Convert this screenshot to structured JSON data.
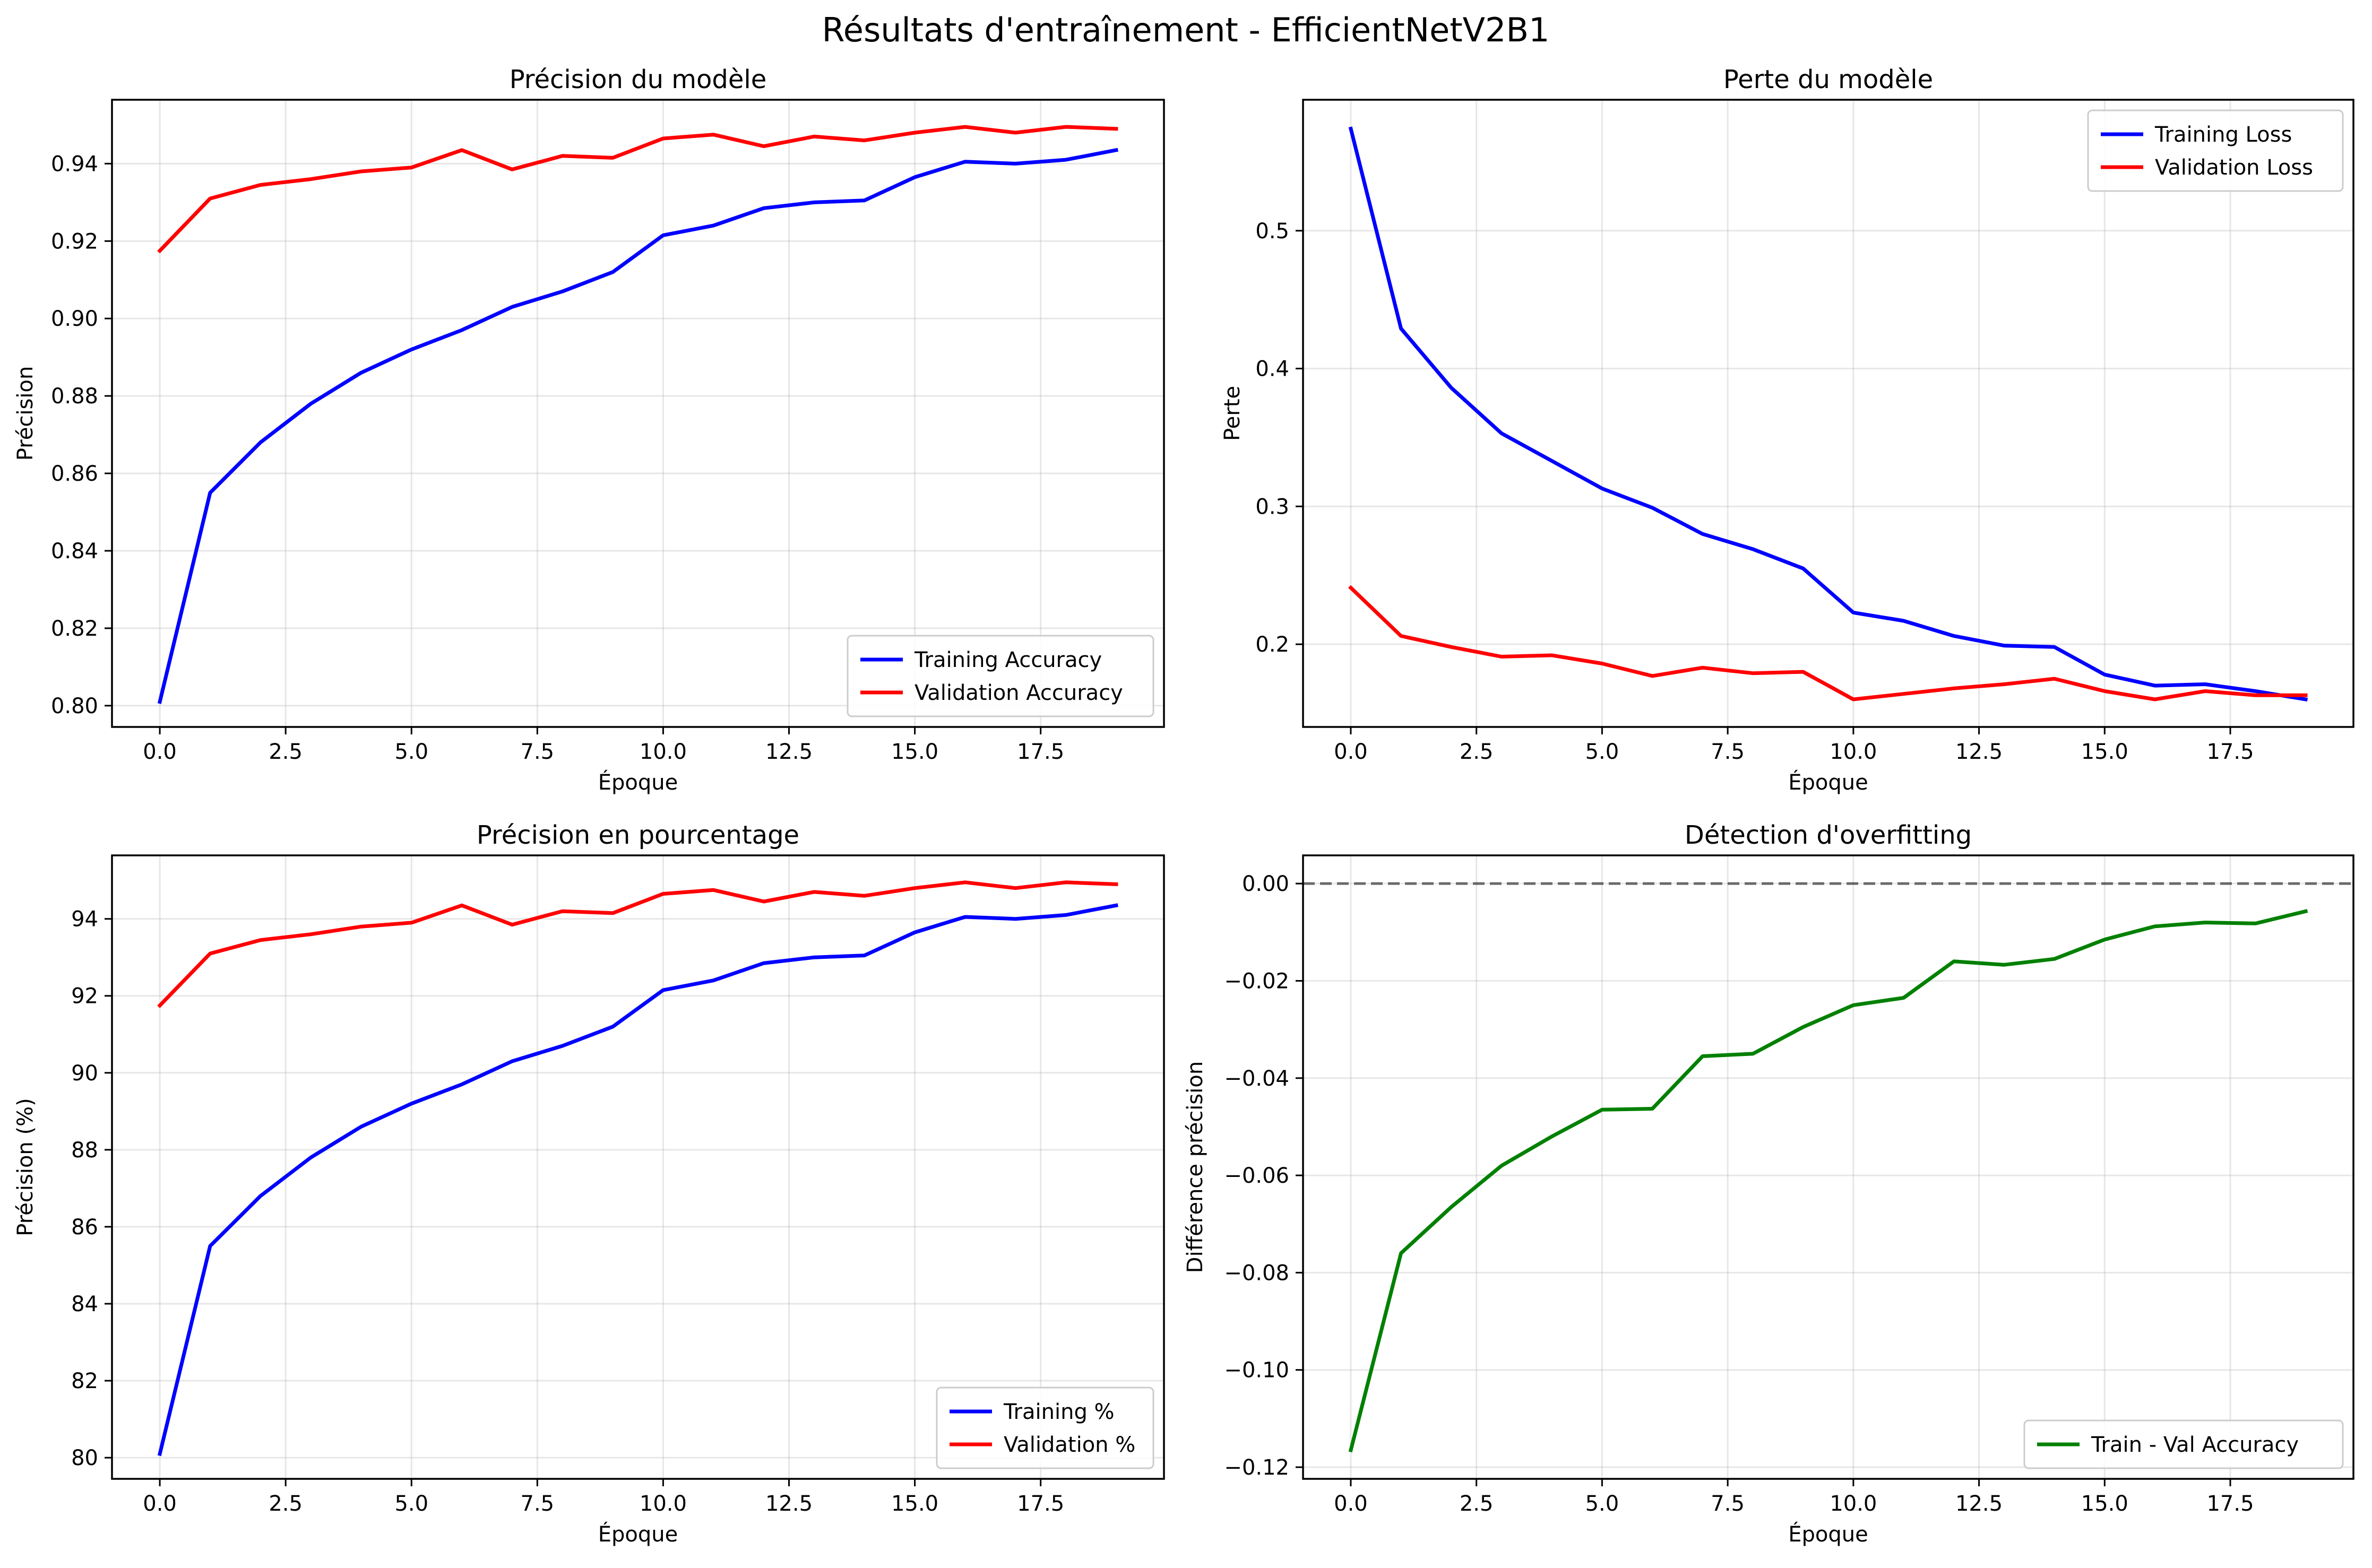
{
  "figure": {
    "title": "Résultats d'entraînement - EfficientNetV2B1"
  },
  "chart_data": [
    {
      "id": "accuracy",
      "type": "line",
      "title": "Précision du modèle",
      "xlabel": "Époque",
      "ylabel": "Précision",
      "xlim": [
        -0.95,
        19.95
      ],
      "ylim": [
        0.7945,
        0.9565
      ],
      "xticks": [
        0.0,
        2.5,
        5.0,
        7.5,
        10.0,
        12.5,
        15.0,
        17.5
      ],
      "xtick_labels": [
        "0.0",
        "2.5",
        "5.0",
        "7.5",
        "10.0",
        "12.5",
        "15.0",
        "17.5"
      ],
      "yticks": [
        0.8,
        0.82,
        0.84,
        0.86,
        0.88,
        0.9,
        0.92,
        0.94
      ],
      "ytick_labels": [
        "0.80",
        "0.82",
        "0.84",
        "0.86",
        "0.88",
        "0.90",
        "0.92",
        "0.94"
      ],
      "grid": true,
      "legend": "lower-right",
      "x": [
        0,
        1,
        2,
        3,
        4,
        5,
        6,
        7,
        8,
        9,
        10,
        11,
        12,
        13,
        14,
        15,
        16,
        17,
        18,
        19
      ],
      "series": [
        {
          "name": "Training Accuracy",
          "color": "#0000ff",
          "values": [
            0.801,
            0.855,
            0.868,
            0.878,
            0.886,
            0.892,
            0.897,
            0.903,
            0.907,
            0.912,
            0.9215,
            0.924,
            0.9285,
            0.93,
            0.9305,
            0.9365,
            0.9405,
            0.94,
            0.941,
            0.9435
          ]
        },
        {
          "name": "Validation Accuracy",
          "color": "#ff0000",
          "values": [
            0.9175,
            0.931,
            0.9345,
            0.936,
            0.938,
            0.939,
            0.9435,
            0.9385,
            0.942,
            0.9415,
            0.9465,
            0.9475,
            0.9445,
            0.947,
            0.946,
            0.948,
            0.9495,
            0.948,
            0.9495,
            0.949
          ]
        }
      ]
    },
    {
      "id": "loss",
      "type": "line",
      "title": "Perte du modèle",
      "xlabel": "Époque",
      "ylabel": "Perte",
      "xlim": [
        -0.95,
        19.95
      ],
      "ylim": [
        0.14,
        0.595
      ],
      "xticks": [
        0.0,
        2.5,
        5.0,
        7.5,
        10.0,
        12.5,
        15.0,
        17.5
      ],
      "xtick_labels": [
        "0.0",
        "2.5",
        "5.0",
        "7.5",
        "10.0",
        "12.5",
        "15.0",
        "17.5"
      ],
      "yticks": [
        0.2,
        0.3,
        0.4,
        0.5
      ],
      "ytick_labels": [
        "0.2",
        "0.3",
        "0.4",
        "0.5"
      ],
      "grid": true,
      "legend": "upper-right",
      "x": [
        0,
        1,
        2,
        3,
        4,
        5,
        6,
        7,
        8,
        9,
        10,
        11,
        12,
        13,
        14,
        15,
        16,
        17,
        18,
        19
      ],
      "series": [
        {
          "name": "Training Loss",
          "color": "#0000ff",
          "values": [
            0.574,
            0.429,
            0.386,
            0.353,
            0.333,
            0.313,
            0.299,
            0.28,
            0.269,
            0.255,
            0.223,
            0.217,
            0.206,
            0.199,
            0.198,
            0.178,
            0.17,
            0.171,
            0.166,
            0.16
          ]
        },
        {
          "name": "Validation Loss",
          "color": "#ff0000",
          "values": [
            0.241,
            0.206,
            0.198,
            0.191,
            0.192,
            0.186,
            0.177,
            0.183,
            0.179,
            0.18,
            0.16,
            0.164,
            0.168,
            0.171,
            0.175,
            0.166,
            0.16,
            0.166,
            0.163,
            0.163
          ]
        }
      ]
    },
    {
      "id": "percent",
      "type": "line",
      "title": "Précision en pourcentage",
      "xlabel": "Époque",
      "ylabel": "Précision (%)",
      "xlim": [
        -0.95,
        19.95
      ],
      "ylim": [
        79.45,
        95.65
      ],
      "xticks": [
        0.0,
        2.5,
        5.0,
        7.5,
        10.0,
        12.5,
        15.0,
        17.5
      ],
      "xtick_labels": [
        "0.0",
        "2.5",
        "5.0",
        "7.5",
        "10.0",
        "12.5",
        "15.0",
        "17.5"
      ],
      "yticks": [
        80,
        82,
        84,
        86,
        88,
        90,
        92,
        94
      ],
      "ytick_labels": [
        "80",
        "82",
        "84",
        "86",
        "88",
        "90",
        "92",
        "94"
      ],
      "grid": true,
      "legend": "lower-right",
      "x": [
        0,
        1,
        2,
        3,
        4,
        5,
        6,
        7,
        8,
        9,
        10,
        11,
        12,
        13,
        14,
        15,
        16,
        17,
        18,
        19
      ],
      "series": [
        {
          "name": "Training %",
          "color": "#0000ff",
          "values": [
            80.1,
            85.5,
            86.8,
            87.8,
            88.6,
            89.2,
            89.7,
            90.3,
            90.7,
            91.2,
            92.15,
            92.4,
            92.85,
            93.0,
            93.05,
            93.65,
            94.05,
            94.0,
            94.1,
            94.35
          ]
        },
        {
          "name": "Validation %",
          "color": "#ff0000",
          "values": [
            91.75,
            93.1,
            93.45,
            93.6,
            93.8,
            93.9,
            94.35,
            93.85,
            94.2,
            94.15,
            94.65,
            94.75,
            94.45,
            94.7,
            94.6,
            94.8,
            94.95,
            94.8,
            94.95,
            94.9
          ]
        }
      ]
    },
    {
      "id": "overfit",
      "type": "line",
      "title": "Détection d'overfitting",
      "xlabel": "Époque",
      "ylabel": "Différence précision",
      "xlim": [
        -0.95,
        19.95
      ],
      "ylim": [
        -0.1224,
        0.0058
      ],
      "xticks": [
        0.0,
        2.5,
        5.0,
        7.5,
        10.0,
        12.5,
        15.0,
        17.5
      ],
      "xtick_labels": [
        "0.0",
        "2.5",
        "5.0",
        "7.5",
        "10.0",
        "12.5",
        "15.0",
        "17.5"
      ],
      "yticks": [
        -0.12,
        -0.1,
        -0.08,
        -0.06,
        -0.04,
        -0.02,
        0.0
      ],
      "ytick_labels": [
        "−0.12",
        "−0.10",
        "−0.08",
        "−0.06",
        "−0.04",
        "−0.02",
        "0.00"
      ],
      "grid": true,
      "legend": "lower-right",
      "reference_line": {
        "y": 0,
        "style": "dashed",
        "color": "#000000"
      },
      "x": [
        0,
        1,
        2,
        3,
        4,
        5,
        6,
        7,
        8,
        9,
        10,
        11,
        12,
        13,
        14,
        15,
        16,
        17,
        18,
        19
      ],
      "series": [
        {
          "name": "Train - Val Accuracy",
          "color": "#008000",
          "values": [
            -0.1165,
            -0.076,
            -0.0665,
            -0.058,
            -0.052,
            -0.0465,
            -0.0463,
            -0.0355,
            -0.035,
            -0.0295,
            -0.025,
            -0.0235,
            -0.016,
            -0.0167,
            -0.0155,
            -0.0115,
            -0.0088,
            -0.008,
            -0.0082,
            -0.0057
          ]
        }
      ]
    }
  ]
}
